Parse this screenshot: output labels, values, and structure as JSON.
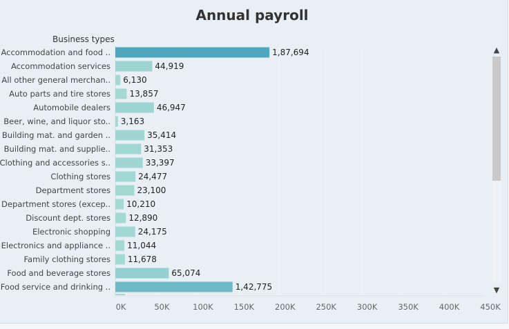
{
  "chart_data": {
    "type": "bar",
    "orientation": "horizontal",
    "title": "Annual payroll",
    "category_header": "Business types",
    "categories": [
      "Accommodation and food ..",
      "Accommodation services",
      "All other general merchan..",
      "Auto parts and tire stores",
      "Automobile dealers",
      "Beer, wine, and liquor sto..",
      "Building mat. and garden ..",
      "Building mat. and supplie..",
      "Clothing and accessories s..",
      "Clothing stores",
      "Department stores",
      "Department stores (excep..",
      "Discount dept. stores",
      "Electronic shopping",
      "Electronics and appliance ..",
      "Family clothing stores",
      "Food and beverage stores",
      "Food service and drinking .."
    ],
    "values": [
      187694,
      44919,
      6130,
      13857,
      46947,
      3163,
      35414,
      31353,
      33397,
      24477,
      23100,
      10210,
      12890,
      24175,
      11044,
      11678,
      65074,
      142775
    ],
    "value_labels": [
      "1,87,694",
      "44,919",
      "6,130",
      "13,857",
      "46,947",
      "3,163",
      "35,414",
      "31,353",
      "33,397",
      "24,477",
      "23,100",
      "10,210",
      "12,890",
      "24,175",
      "11,044",
      "11,678",
      "65,074",
      "1,42,775"
    ],
    "xlim": [
      0,
      450000
    ],
    "x_ticks": [
      0,
      50000,
      100000,
      150000,
      200000,
      250000,
      300000,
      350000,
      400000,
      450000
    ],
    "x_tick_labels": [
      "0K",
      "50K",
      "100K",
      "150K",
      "200K",
      "250K",
      "300K",
      "350K",
      "400K",
      "450K"
    ],
    "color_scale": {
      "low": "#a4d9d3",
      "high": "#4ea7bf"
    },
    "grid": "vertical"
  },
  "scrollbar": {
    "up_icon": "▲",
    "down_icon": "▼"
  }
}
